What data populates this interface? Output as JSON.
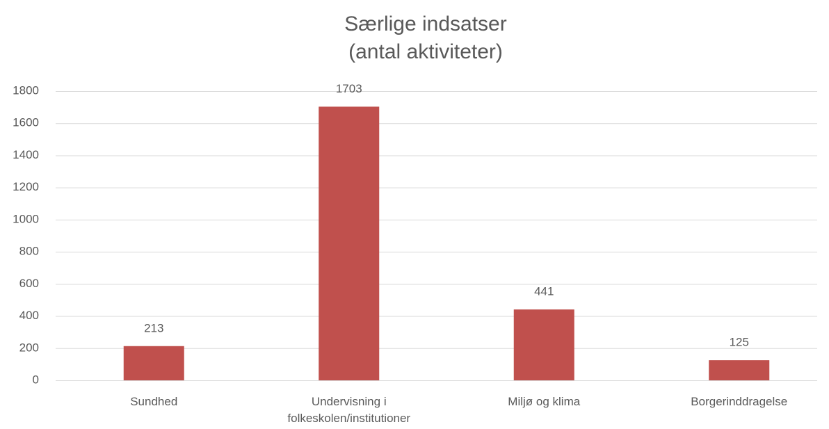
{
  "chart_data": {
    "type": "bar",
    "title": "Særlige indsatser",
    "subtitle": "(antal aktiviteter)",
    "categories": [
      "Sundhed",
      "Undervisning i folkeskolen/institutioner",
      "Miljø og klima",
      "Borgerinddragelse"
    ],
    "values": [
      213,
      1703,
      441,
      125
    ],
    "color": "#c0504d",
    "ylim": [
      0,
      1800
    ],
    "yticks": [
      0,
      200,
      400,
      600,
      800,
      1000,
      1200,
      1400,
      1600,
      1800
    ],
    "grid": true
  }
}
